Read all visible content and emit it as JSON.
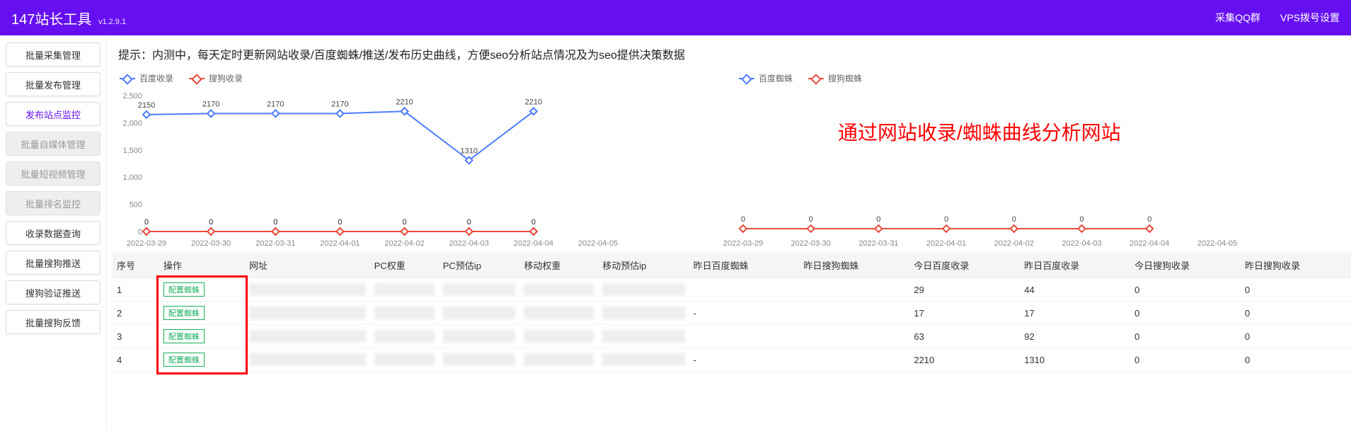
{
  "header": {
    "title": "147站长工具",
    "version": "v1.2.9.1",
    "links": [
      "采集QQ群",
      "VPS拨号设置"
    ]
  },
  "sidebar": {
    "items": [
      {
        "label": "批量采集管理",
        "state": "normal"
      },
      {
        "label": "批量发布管理",
        "state": "normal"
      },
      {
        "label": "发布站点监控",
        "state": "active"
      },
      {
        "label": "批量自媒体管理",
        "state": "disabled"
      },
      {
        "label": "批量短视频管理",
        "state": "disabled"
      },
      {
        "label": "批量排名监控",
        "state": "disabled"
      },
      {
        "label": "收录数据查询",
        "state": "normal"
      },
      {
        "label": "批量搜狗推送",
        "state": "normal"
      },
      {
        "label": "搜狗验证推送",
        "state": "normal"
      },
      {
        "label": "批量搜狗反馈",
        "state": "normal"
      }
    ]
  },
  "hint": "提示：内测中，每天定时更新网站收录/百度蜘蛛/推送/发布历史曲线，方便seo分析站点情况及为seo提供决策数据",
  "overlay": "通过网站收录/蜘蛛曲线分析网站",
  "chart_left": {
    "legend": [
      {
        "label": "百度收录",
        "color": "#4e7cff"
      },
      {
        "label": "搜狗收录",
        "color": "#e74c3c"
      }
    ],
    "y_axis": {
      "min": 0,
      "max": 2500,
      "step": 500,
      "labels": [
        "0",
        "500",
        "1,000",
        "1,500",
        "2,000",
        "2,500"
      ]
    },
    "x_labels": [
      "2022-03-29",
      "2022-03-30",
      "2022-03-31",
      "2022-04-01",
      "2022-04-02",
      "2022-04-03",
      "2022-04-04",
      "2022-04-05"
    ],
    "series_blue": {
      "values": [
        2150,
        2170,
        2170,
        2170,
        2210,
        1310,
        2210
      ],
      "color": "#4e7cff",
      "label_indices": [
        0,
        1,
        2,
        3,
        4,
        5,
        6
      ]
    },
    "series_red": {
      "values": [
        0,
        0,
        0,
        0,
        0,
        0,
        0
      ],
      "color": "#e74c3c"
    }
  },
  "chart_right": {
    "legend": [
      {
        "label": "百度蜘蛛",
        "color": "#4e7cff"
      },
      {
        "label": "搜狗蜘蛛",
        "color": "#e74c3c"
      }
    ],
    "x_labels": [
      "2022-03-29",
      "2022-03-30",
      "2022-03-31",
      "2022-04-01",
      "2022-04-02",
      "2022-04-03",
      "2022-04-04",
      "2022-04-05"
    ],
    "series_red": {
      "values": [
        0,
        0,
        0,
        0,
        0,
        0,
        0
      ],
      "color": "#e74c3c"
    }
  },
  "table": {
    "columns": [
      "序号",
      "操作",
      "网址",
      "PC权重",
      "PC预估ip",
      "移动权重",
      "移动预估ip",
      "昨日百度蜘蛛",
      "昨日搜狗蜘蛛",
      "今日百度收录",
      "昨日百度收录",
      "今日搜狗收录",
      "昨日搜狗收录"
    ],
    "config_btn_label": "配置蜘蛛",
    "rows": [
      {
        "idx": 1,
        "bd_spider": "",
        "sg_spider": "",
        "bd_today": "29",
        "bd_yest": "44",
        "sg_today": "0",
        "sg_yest": "0"
      },
      {
        "idx": 2,
        "bd_spider": "-",
        "sg_spider": "",
        "bd_today": "17",
        "bd_yest": "17",
        "sg_today": "0",
        "sg_yest": "0"
      },
      {
        "idx": 3,
        "bd_spider": "",
        "sg_spider": "",
        "bd_today": "63",
        "bd_yest": "92",
        "sg_today": "0",
        "sg_yest": "0"
      },
      {
        "idx": 4,
        "bd_spider": "-",
        "sg_spider": "",
        "bd_today": "2210",
        "bd_yest": "1310",
        "sg_today": "0",
        "sg_yest": "0"
      }
    ]
  },
  "colors": {
    "primary": "#6610f2",
    "blue": "#4e7cff",
    "red": "#e74c3c",
    "green": "#1aaf5d"
  }
}
